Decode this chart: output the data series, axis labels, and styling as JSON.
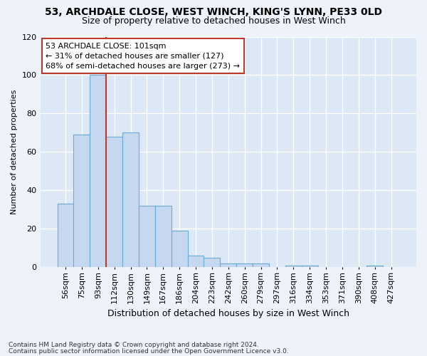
{
  "title_line1": "53, ARCHDALE CLOSE, WEST WINCH, KING'S LYNN, PE33 0LD",
  "title_line2": "Size of property relative to detached houses in West Winch",
  "xlabel": "Distribution of detached houses by size in West Winch",
  "ylabel": "Number of detached properties",
  "categories": [
    "56sqm",
    "75sqm",
    "93sqm",
    "112sqm",
    "130sqm",
    "149sqm",
    "167sqm",
    "186sqm",
    "204sqm",
    "223sqm",
    "242sqm",
    "260sqm",
    "279sqm",
    "297sqm",
    "316sqm",
    "334sqm",
    "353sqm",
    "371sqm",
    "390sqm",
    "408sqm",
    "427sqm"
  ],
  "values": [
    33,
    69,
    100,
    68,
    70,
    32,
    32,
    19,
    6,
    5,
    2,
    2,
    2,
    0,
    1,
    1,
    0,
    0,
    0,
    1,
    0
  ],
  "bar_color": "#c5d8f0",
  "bar_edge_color": "#6aaad4",
  "vline_pos": 2.5,
  "vline_color": "#c0392b",
  "annotation_text_line1": "53 ARCHDALE CLOSE: 101sqm",
  "annotation_text_line2": "← 31% of detached houses are smaller (127)",
  "annotation_text_line3": "68% of semi-detached houses are larger (273) →",
  "annotation_box_color": "white",
  "annotation_box_edge_color": "#c0392b",
  "ylim": [
    0,
    120
  ],
  "yticks": [
    0,
    20,
    40,
    60,
    80,
    100,
    120
  ],
  "footnote_line1": "Contains HM Land Registry data © Crown copyright and database right 2024.",
  "footnote_line2": "Contains public sector information licensed under the Open Government Licence v3.0.",
  "background_color": "#eef2fa",
  "plot_bg_color": "#dce8f5",
  "grid_color": "white",
  "title1_fontsize": 10,
  "title2_fontsize": 9,
  "xlabel_fontsize": 9,
  "ylabel_fontsize": 8,
  "tick_fontsize": 8,
  "annot_fontsize": 8,
  "footnote_fontsize": 6.5
}
